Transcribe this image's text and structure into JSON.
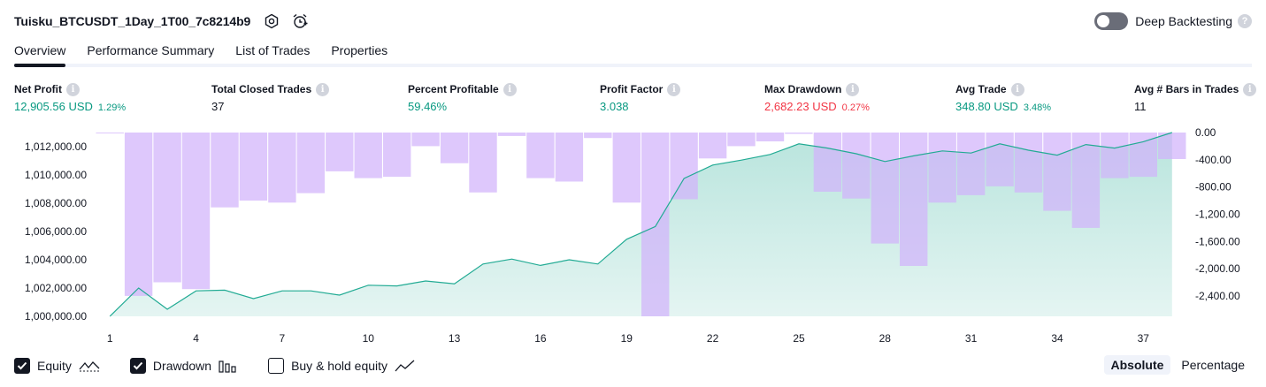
{
  "header": {
    "title": "Tuisku_BTCUSDT_1Day_1T00_7c8214b9",
    "deep_backtesting_label": "Deep Backtesting",
    "deep_backtesting_enabled": false,
    "help_glyph": "?"
  },
  "tabs": [
    {
      "label": "Overview",
      "active": true
    },
    {
      "label": "Performance Summary",
      "active": false
    },
    {
      "label": "List of Trades",
      "active": false
    },
    {
      "label": "Properties",
      "active": false
    }
  ],
  "info_glyph": "i",
  "metrics": {
    "net_profit": {
      "label": "Net Profit",
      "value": "12,905.56 USD",
      "pct": "1.29%"
    },
    "total_closed_trades": {
      "label": "Total Closed Trades",
      "value": "37"
    },
    "percent_profitable": {
      "label": "Percent Profitable",
      "value": "59.46%"
    },
    "profit_factor": {
      "label": "Profit Factor",
      "value": "3.038"
    },
    "max_drawdown": {
      "label": "Max Drawdown",
      "value": "2,682.23 USD",
      "pct": "0.27%"
    },
    "avg_trade": {
      "label": "Avg Trade",
      "value": "348.80 USD",
      "pct": "3.48%"
    },
    "avg_bars": {
      "label": "Avg # Bars in Trades",
      "value": "11"
    }
  },
  "colors": {
    "positive": "#089981",
    "negative": "#f23645",
    "equity_line": "#22ab94",
    "drawdown_bar": "#d1b3fb"
  },
  "chart_data": {
    "type": "line+bar",
    "x": [
      1,
      2,
      3,
      4,
      5,
      6,
      7,
      8,
      9,
      10,
      11,
      12,
      13,
      14,
      15,
      16,
      17,
      18,
      19,
      20,
      21,
      22,
      23,
      24,
      25,
      26,
      27,
      28,
      29,
      30,
      31,
      32,
      33,
      34,
      35,
      36,
      37,
      38
    ],
    "x_tick_labels": [
      "1",
      "4",
      "7",
      "10",
      "13",
      "16",
      "19",
      "22",
      "25",
      "28",
      "31",
      "34",
      "37"
    ],
    "left_axis": {
      "ylim": [
        1000000,
        1013000
      ],
      "tick_labels": [
        "1,012,000.00",
        "1,010,000.00",
        "1,008,000.00",
        "1,006,000.00",
        "1,004,000.00",
        "1,002,000.00",
        "1,000,000.00"
      ],
      "tick_values": [
        1012000,
        1010000,
        1008000,
        1006000,
        1004000,
        1002000,
        1000000
      ]
    },
    "right_axis": {
      "ylim": [
        -2700,
        0
      ],
      "tick_labels": [
        "0.00",
        "-400.00",
        "-800.00",
        "-1,200.00",
        "-1,600.00",
        "-2,000.00",
        "-2,400.00"
      ],
      "tick_values": [
        0,
        -400,
        -800,
        -1200,
        -1600,
        -2000,
        -2400
      ]
    },
    "series": [
      {
        "name": "Equity",
        "axis": "left",
        "values": [
          1000000,
          1002000,
          1000500,
          1001800,
          1001850,
          1001250,
          1001800,
          1001800,
          1001500,
          1002200,
          1002150,
          1002500,
          1002300,
          1003700,
          1004050,
          1003600,
          1004000,
          1003700,
          1005450,
          1006350,
          1009750,
          1010700,
          1011050,
          1011450,
          1012200,
          1011900,
          1011500,
          1010950,
          1011350,
          1011700,
          1011550,
          1012200,
          1011750,
          1011400,
          1012150,
          1011900,
          1012350,
          1013000
        ]
      },
      {
        "name": "Drawdown",
        "axis": "right",
        "values": [
          -10,
          -2400,
          -2200,
          -2300,
          -1100,
          -1000,
          -1030,
          -890,
          -570,
          -670,
          -650,
          -200,
          -450,
          -880,
          -50,
          -670,
          -720,
          -80,
          -1030,
          -2700,
          -980,
          -380,
          -200,
          -130,
          -20,
          -870,
          -970,
          -1630,
          -1960,
          -1030,
          -920,
          -790,
          -880,
          -1150,
          -1400,
          -670,
          -650,
          -390
        ]
      }
    ]
  },
  "legend": {
    "items": [
      {
        "label": "Equity",
        "checked": true,
        "icon": "equity-line-icon"
      },
      {
        "label": "Drawdown",
        "checked": true,
        "icon": "drawdown-bars-icon"
      },
      {
        "label": "Buy & hold equity",
        "checked": false,
        "icon": "buy-hold-line-icon"
      }
    ]
  },
  "mode": {
    "absolute_label": "Absolute",
    "percentage_label": "Percentage",
    "selected": "Absolute"
  }
}
